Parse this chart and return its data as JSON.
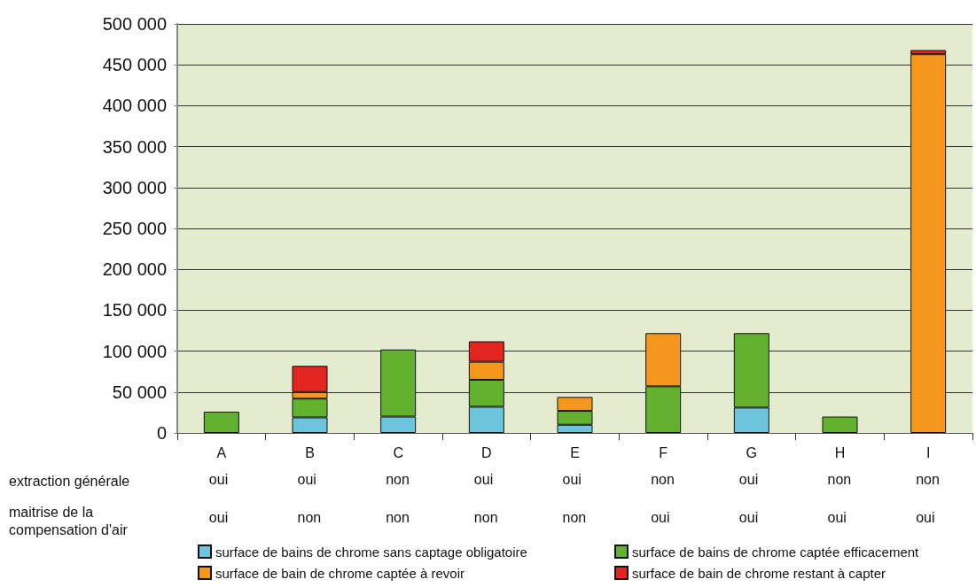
{
  "chart_data": {
    "type": "bar",
    "stacked": true,
    "categories": [
      "A",
      "B",
      "C",
      "D",
      "E",
      "F",
      "G",
      "H",
      "I"
    ],
    "series": [
      {
        "name": "surface de bains de chrome sans captage obligatoire",
        "color": "#6cc5dc",
        "values": [
          null,
          19000,
          20000,
          32000,
          10000,
          null,
          31000,
          null,
          null
        ]
      },
      {
        "name": "surface de bains de chrome captée efficacement",
        "color": "#62b22f",
        "values": [
          26000,
          23000,
          82000,
          33000,
          17000,
          57000,
          91000,
          20000,
          null
        ]
      },
      {
        "name": "surface de bain de chrome captée à revoir",
        "color": "#f5961d",
        "values": [
          null,
          8000,
          null,
          22000,
          17000,
          65000,
          null,
          null,
          463000
        ]
      },
      {
        "name": "surface de bain de chrome restant à capter",
        "color": "#e3251f",
        "values": [
          null,
          32000,
          null,
          25000,
          null,
          null,
          null,
          null,
          5000
        ]
      }
    ],
    "ylim": [
      0,
      500000
    ],
    "yticks": [
      {
        "value": 0,
        "label": "0"
      },
      {
        "value": 50000,
        "label": "50 000"
      },
      {
        "value": 100000,
        "label": "100 000"
      },
      {
        "value": 150000,
        "label": "150 000"
      },
      {
        "value": 200000,
        "label": "200 000"
      },
      {
        "value": 250000,
        "label": "250 000"
      },
      {
        "value": 300000,
        "label": "300 000"
      },
      {
        "value": 350000,
        "label": "350 000"
      },
      {
        "value": 400000,
        "label": "400 000"
      },
      {
        "value": 450000,
        "label": "450 000"
      },
      {
        "value": 500000,
        "label": "500 000"
      }
    ],
    "grid": "y",
    "legend": "bottom",
    "annotations": [
      "extraction générale",
      "maitrise de la compensation d'air",
      "oui",
      "oui",
      "non",
      "oui",
      "oui",
      "non",
      "oui",
      "non",
      "non",
      "oui",
      "non",
      "non",
      "non",
      "non",
      "oui",
      "oui",
      "oui",
      "oui"
    ]
  }
}
